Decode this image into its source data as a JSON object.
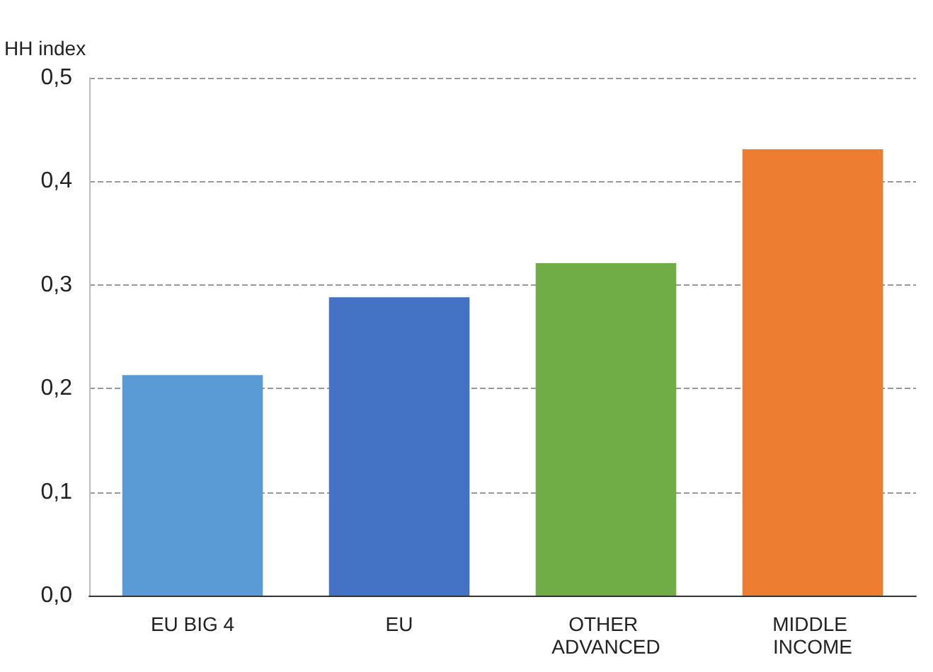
{
  "chart_data": {
    "type": "bar",
    "ylabel": "HH index",
    "categories": [
      "EU BIG 4",
      "EU",
      "OTHER ADVANCED",
      "MIDDLE INCOME"
    ],
    "values": [
      0.213,
      0.288,
      0.321,
      0.431
    ],
    "colors": [
      "#5b9bd5",
      "#4472c4",
      "#70ad47",
      "#ed7d31"
    ],
    "ylim": [
      0,
      0.5
    ],
    "yticks": [
      {
        "value": 0,
        "label": "0,0"
      },
      {
        "value": 0.1,
        "label": "0,1"
      },
      {
        "value": 0.2,
        "label": "0,2"
      },
      {
        "value": 0.3,
        "label": "0,3"
      },
      {
        "value": 0.4,
        "label": "0,4"
      },
      {
        "value": 0.5,
        "label": "0,5"
      }
    ],
    "grid": "y"
  }
}
